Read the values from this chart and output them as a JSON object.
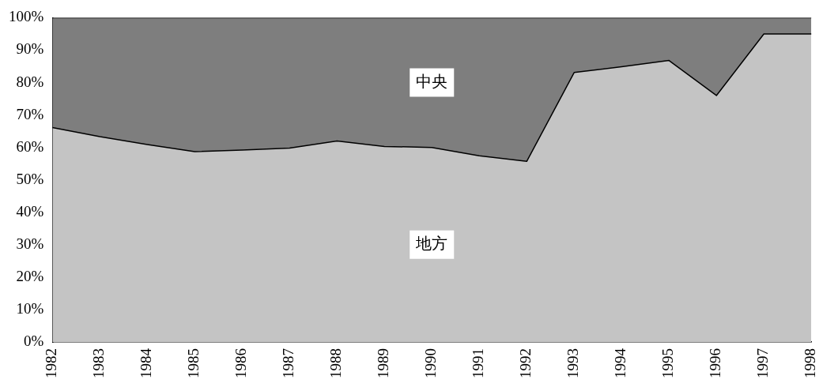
{
  "chart_data": {
    "type": "area",
    "stacked": true,
    "categories": [
      "1982",
      "1983",
      "1984",
      "1985",
      "1986",
      "1987",
      "1988",
      "1989",
      "1990",
      "1991",
      "1992",
      "1993",
      "1994",
      "1995",
      "1996",
      "1997",
      "1998"
    ],
    "series": [
      {
        "name": "地方",
        "color": "#c4c4c4",
        "values": [
          66.1,
          63.3,
          60.9,
          58.7,
          59.2,
          59.8,
          62.0,
          60.3,
          60.0,
          57.4,
          55.7,
          83.1,
          84.9,
          86.8,
          76.0,
          95.0,
          95.0
        ]
      },
      {
        "name": "中央",
        "color": "#7e7e7e",
        "values": [
          33.9,
          36.7,
          39.1,
          41.3,
          40.8,
          40.2,
          38.0,
          39.7,
          40.0,
          42.6,
          44.3,
          16.9,
          15.1,
          13.2,
          24.0,
          5.0,
          5.0
        ]
      }
    ],
    "ylim": [
      0,
      100
    ],
    "yticks": [
      {
        "value": 0,
        "label": "0%"
      },
      {
        "value": 10,
        "label": "10%"
      },
      {
        "value": 20,
        "label": "20%"
      },
      {
        "value": 30,
        "label": "30%"
      },
      {
        "value": 40,
        "label": "40%"
      },
      {
        "value": 50,
        "label": "50%"
      },
      {
        "value": 60,
        "label": "60%"
      },
      {
        "value": 70,
        "label": "70%"
      },
      {
        "value": 80,
        "label": "80%"
      },
      {
        "value": 90,
        "label": "90%"
      },
      {
        "value": 100,
        "label": "100%"
      }
    ],
    "grid": false,
    "legend": false
  }
}
